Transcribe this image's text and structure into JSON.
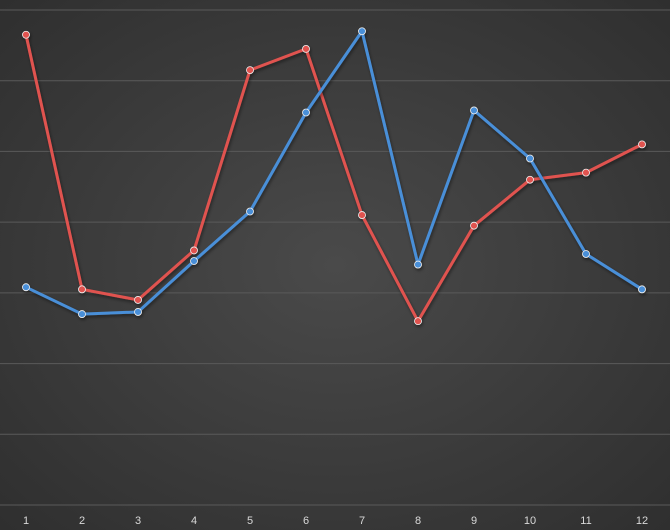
{
  "chart_data": {
    "type": "line",
    "categories": [
      "1",
      "2",
      "3",
      "4",
      "5",
      "6",
      "7",
      "8",
      "9",
      "10",
      "11",
      "12"
    ],
    "series": [
      {
        "color": "#e0534f",
        "values": [
          66.5,
          30.5,
          29.0,
          36.0,
          61.5,
          64.5,
          41.0,
          26.0,
          39.5,
          46.0,
          47.0,
          51.0
        ]
      },
      {
        "color": "#4a8fd8",
        "values": [
          30.8,
          27.0,
          27.3,
          34.5,
          41.5,
          55.5,
          67.0,
          34.0,
          55.8,
          49.0,
          35.5,
          30.5
        ]
      }
    ],
    "ylim": [
      0,
      70
    ],
    "y_gridlines": [
      0,
      10,
      20,
      30,
      40,
      50,
      60,
      70
    ],
    "grid": true,
    "show_y_tick_labels": false,
    "legend": "none",
    "background": "#3a3a3a",
    "gridline_color": "#5a5a5a"
  }
}
